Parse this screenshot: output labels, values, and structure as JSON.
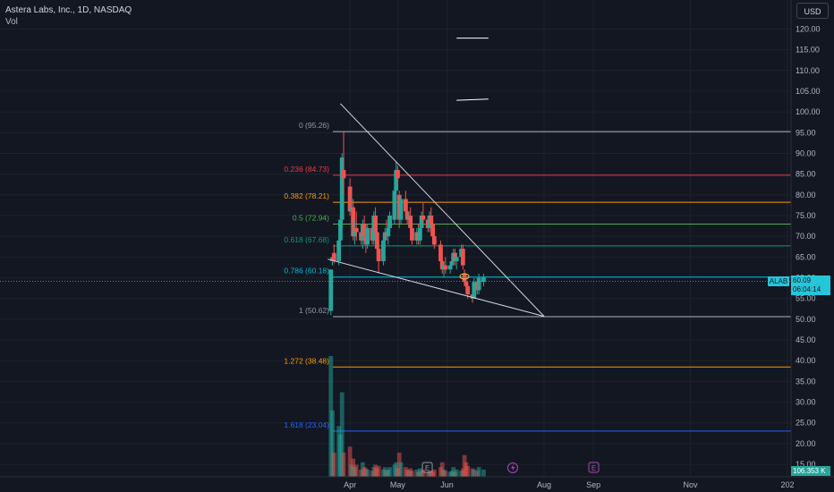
{
  "header": {
    "title": "Astera Labs, Inc., 1D, NASDAQ",
    "vol_label": "Vol"
  },
  "currency": "USD",
  "symbol_tag": "ALAB",
  "last_price": "60.09",
  "countdown": "06:04:14",
  "volume_readout": "106.353 K",
  "colors": {
    "background": "#131722",
    "grid": "#1e222d",
    "up": "#26a69a",
    "down": "#ef5350",
    "fib_0": "#9598a1",
    "fib_236": "#f23645",
    "fib_382": "#ff9800",
    "fib_5": "#4caf50",
    "fib_618": "#089981",
    "fib_786": "#00bcd4",
    "fib_1": "#9598a1",
    "fib_1272": "#ff9800",
    "fib_1618": "#2962ff",
    "trendline": "#d1d4dc"
  },
  "chart_data": {
    "type": "candlestick",
    "y_axis": {
      "range": [
        12,
        127
      ],
      "ticks": [
        "120.00",
        "115.00",
        "110.00",
        "105.00",
        "100.00",
        "95.00",
        "90.00",
        "85.00",
        "80.00",
        "75.00",
        "70.00",
        "65.00",
        "60.00",
        "55.00",
        "50.00",
        "45.00",
        "40.00",
        "35.00",
        "30.00",
        "25.00",
        "20.00",
        "15.00"
      ],
      "tick_values": [
        120,
        115,
        110,
        105,
        100,
        95,
        90,
        85,
        80,
        75,
        70,
        65,
        60,
        55,
        50,
        45,
        40,
        35,
        30,
        25,
        20,
        15
      ]
    },
    "x_axis": {
      "range": [
        "2024-03-01",
        "2025-01-01"
      ],
      "labels": [
        {
          "text": "Apr",
          "date": "2024-04-01"
        },
        {
          "text": "May",
          "date": "2024-05-01"
        },
        {
          "text": "Jun",
          "date": "2024-06-01"
        },
        {
          "text": "Aug",
          "date": "2024-08-01"
        },
        {
          "text": "Sep",
          "date": "2024-09-01"
        },
        {
          "text": "Nov",
          "date": "2024-11-01"
        },
        {
          "text": "202",
          "date": "2025-01-01"
        }
      ]
    },
    "fib_levels": [
      {
        "label": "0 (95.26)",
        "value": 95.26,
        "color": "#9598a1",
        "line": "#b2b5be"
      },
      {
        "label": "0.236 (84.73)",
        "value": 84.73,
        "color": "#f23645",
        "line": "#f23645"
      },
      {
        "label": "0.382 (78.21)",
        "value": 78.21,
        "color": "#ff9800",
        "line": "#ff9800"
      },
      {
        "label": "0.5 (72.94)",
        "value": 72.94,
        "color": "#4caf50",
        "line": "#4caf50"
      },
      {
        "label": "0.618 (67.68)",
        "value": 67.68,
        "color": "#089981",
        "line": "#089981"
      },
      {
        "label": "0.786 (60.18)",
        "value": 60.18,
        "color": "#00bcd4",
        "line": "#00bcd4"
      },
      {
        "label": "1 (50.62)",
        "value": 50.62,
        "color": "#9598a1",
        "line": "#b2b5be"
      },
      {
        "label": "1.272 (38.48)",
        "value": 38.48,
        "color": "#ff9800",
        "line": "#ff9800"
      },
      {
        "label": "1.618 (23.04)",
        "value": 23.04,
        "color": "#2962ff",
        "line": "#2962ff"
      }
    ],
    "candles": [
      {
        "date": "2024-03-20",
        "o": 52,
        "h": 62,
        "l": 51,
        "c": 62
      },
      {
        "date": "2024-03-21",
        "o": 64,
        "h": 65.5,
        "l": 63,
        "c": 65
      },
      {
        "date": "2024-03-22",
        "o": 66,
        "h": 68,
        "l": 63.5,
        "c": 64
      },
      {
        "date": "2024-03-25",
        "o": 64,
        "h": 70,
        "l": 63,
        "c": 69
      },
      {
        "date": "2024-03-26",
        "o": 69,
        "h": 75,
        "l": 67,
        "c": 74
      },
      {
        "date": "2024-03-27",
        "o": 74,
        "h": 90,
        "l": 72,
        "c": 89
      },
      {
        "date": "2024-03-28",
        "o": 86,
        "h": 95.3,
        "l": 80,
        "c": 84
      },
      {
        "date": "2024-04-01",
        "o": 82,
        "h": 84,
        "l": 75,
        "c": 76
      },
      {
        "date": "2024-04-02",
        "o": 76,
        "h": 80,
        "l": 73,
        "c": 77
      },
      {
        "date": "2024-04-03",
        "o": 77,
        "h": 79,
        "l": 69,
        "c": 70
      },
      {
        "date": "2024-04-04",
        "o": 70,
        "h": 74,
        "l": 68,
        "c": 72
      },
      {
        "date": "2024-04-05",
        "o": 72,
        "h": 76,
        "l": 69,
        "c": 71
      },
      {
        "date": "2024-04-08",
        "o": 71,
        "h": 73,
        "l": 68,
        "c": 69
      },
      {
        "date": "2024-04-09",
        "o": 69,
        "h": 74,
        "l": 67,
        "c": 73
      },
      {
        "date": "2024-04-10",
        "o": 73,
        "h": 75,
        "l": 69,
        "c": 70
      },
      {
        "date": "2024-04-11",
        "o": 70,
        "h": 72,
        "l": 66,
        "c": 68
      },
      {
        "date": "2024-04-12",
        "o": 68,
        "h": 73,
        "l": 67,
        "c": 72
      },
      {
        "date": "2024-04-15",
        "o": 72,
        "h": 74,
        "l": 68,
        "c": 69
      },
      {
        "date": "2024-04-16",
        "o": 69,
        "h": 76,
        "l": 68,
        "c": 75
      },
      {
        "date": "2024-04-17",
        "o": 75,
        "h": 77,
        "l": 70,
        "c": 71
      },
      {
        "date": "2024-04-18",
        "o": 71,
        "h": 72,
        "l": 66,
        "c": 67
      },
      {
        "date": "2024-04-19",
        "o": 67,
        "h": 69,
        "l": 61,
        "c": 64
      },
      {
        "date": "2024-04-22",
        "o": 64,
        "h": 70,
        "l": 63,
        "c": 69
      },
      {
        "date": "2024-04-23",
        "o": 69,
        "h": 72,
        "l": 67,
        "c": 71
      },
      {
        "date": "2024-04-24",
        "o": 71,
        "h": 74,
        "l": 69,
        "c": 70
      },
      {
        "date": "2024-04-25",
        "o": 70,
        "h": 73,
        "l": 68,
        "c": 72
      },
      {
        "date": "2024-04-26",
        "o": 72,
        "h": 76,
        "l": 71,
        "c": 75
      },
      {
        "date": "2024-04-29",
        "o": 74,
        "h": 82,
        "l": 73,
        "c": 81
      },
      {
        "date": "2024-04-30",
        "o": 81,
        "h": 88,
        "l": 79,
        "c": 86
      },
      {
        "date": "2024-05-01",
        "o": 86,
        "h": 87,
        "l": 82,
        "c": 84
      },
      {
        "date": "2024-05-02",
        "o": 80,
        "h": 81,
        "l": 72,
        "c": 74
      },
      {
        "date": "2024-05-03",
        "o": 74,
        "h": 80,
        "l": 73,
        "c": 79
      },
      {
        "date": "2024-05-06",
        "o": 79,
        "h": 81,
        "l": 75,
        "c": 76
      },
      {
        "date": "2024-05-07",
        "o": 76,
        "h": 78,
        "l": 73,
        "c": 74
      },
      {
        "date": "2024-05-08",
        "o": 74,
        "h": 76,
        "l": 72,
        "c": 75
      },
      {
        "date": "2024-05-09",
        "o": 75,
        "h": 77,
        "l": 71,
        "c": 72
      },
      {
        "date": "2024-05-10",
        "o": 72,
        "h": 73,
        "l": 68,
        "c": 69
      },
      {
        "date": "2024-05-13",
        "o": 69,
        "h": 72,
        "l": 68,
        "c": 71
      },
      {
        "date": "2024-05-14",
        "o": 71,
        "h": 73,
        "l": 68,
        "c": 69
      },
      {
        "date": "2024-05-15",
        "o": 69,
        "h": 73,
        "l": 68,
        "c": 72
      },
      {
        "date": "2024-05-16",
        "o": 72,
        "h": 76,
        "l": 71,
        "c": 75
      },
      {
        "date": "2024-05-17",
        "o": 75,
        "h": 78,
        "l": 73,
        "c": 74
      },
      {
        "date": "2024-05-20",
        "o": 74,
        "h": 75,
        "l": 71,
        "c": 72
      },
      {
        "date": "2024-05-21",
        "o": 72,
        "h": 76,
        "l": 71,
        "c": 75
      },
      {
        "date": "2024-05-22",
        "o": 75,
        "h": 77,
        "l": 72,
        "c": 73
      },
      {
        "date": "2024-05-23",
        "o": 73,
        "h": 74,
        "l": 69,
        "c": 70
      },
      {
        "date": "2024-05-24",
        "o": 70,
        "h": 72,
        "l": 67,
        "c": 68
      },
      {
        "date": "2024-05-28",
        "o": 68,
        "h": 69,
        "l": 63,
        "c": 64
      },
      {
        "date": "2024-05-29",
        "o": 64,
        "h": 66,
        "l": 61,
        "c": 62
      },
      {
        "date": "2024-05-30",
        "o": 62,
        "h": 64,
        "l": 60,
        "c": 63
      },
      {
        "date": "2024-05-31",
        "o": 63,
        "h": 65,
        "l": 61,
        "c": 62
      },
      {
        "date": "2024-06-03",
        "o": 62,
        "h": 64,
        "l": 61,
        "c": 63
      },
      {
        "date": "2024-06-04",
        "o": 63,
        "h": 65,
        "l": 62,
        "c": 64
      },
      {
        "date": "2024-06-05",
        "o": 64,
        "h": 67,
        "l": 63,
        "c": 66
      },
      {
        "date": "2024-06-06",
        "o": 66,
        "h": 67,
        "l": 63,
        "c": 64
      },
      {
        "date": "2024-06-07",
        "o": 64,
        "h": 66,
        "l": 62,
        "c": 65
      },
      {
        "date": "2024-06-10",
        "o": 65,
        "h": 68,
        "l": 64,
        "c": 67
      },
      {
        "date": "2024-06-11",
        "o": 67,
        "h": 68,
        "l": 62,
        "c": 63
      },
      {
        "date": "2024-06-12",
        "o": 61,
        "h": 62,
        "l": 58,
        "c": 59
      },
      {
        "date": "2024-06-13",
        "o": 59,
        "h": 61,
        "l": 57,
        "c": 58
      },
      {
        "date": "2024-06-14",
        "o": 58,
        "h": 59,
        "l": 55,
        "c": 56
      },
      {
        "date": "2024-06-17",
        "o": 56,
        "h": 58,
        "l": 54,
        "c": 55
      },
      {
        "date": "2024-06-18",
        "o": 55,
        "h": 60,
        "l": 55,
        "c": 59
      },
      {
        "date": "2024-06-20",
        "o": 59,
        "h": 60,
        "l": 56,
        "c": 57
      },
      {
        "date": "2024-06-21",
        "o": 57,
        "h": 61,
        "l": 56,
        "c": 60
      },
      {
        "date": "2024-06-24",
        "o": 59,
        "h": 61,
        "l": 58,
        "c": 60.09
      }
    ],
    "volume_axis_max": 100,
    "volume": [
      100,
      55,
      20,
      42,
      35,
      70,
      20,
      25,
      10,
      15,
      8,
      10,
      6,
      12,
      8,
      7,
      6,
      5,
      8,
      10,
      7,
      9,
      6,
      8,
      5,
      6,
      8,
      10,
      12,
      7,
      20,
      12,
      8,
      6,
      5,
      7,
      5,
      6,
      4,
      7,
      5,
      6,
      4,
      5,
      5,
      4,
      6,
      8,
      12,
      6,
      5,
      4,
      5,
      8,
      4,
      6,
      5,
      7,
      18,
      12,
      9,
      7,
      6,
      5,
      8,
      6
    ],
    "trendlines": [
      {
        "from": {
          "date": "2024-03-26",
          "price": 102
        },
        "to": {
          "date": "2024-08-01",
          "price": 50.7
        }
      },
      {
        "from": {
          "date": "2024-03-18",
          "price": 64.5
        },
        "to": {
          "date": "2024-08-01",
          "price": 50.7
        }
      }
    ],
    "extra_segments": [
      {
        "from": {
          "date": "2024-06-07",
          "price": 117.8
        },
        "to": {
          "date": "2024-06-27",
          "price": 117.8
        }
      },
      {
        "from": {
          "date": "2024-06-07",
          "price": 102.8
        },
        "to": {
          "date": "2024-06-27",
          "price": 103.1
        }
      }
    ]
  }
}
